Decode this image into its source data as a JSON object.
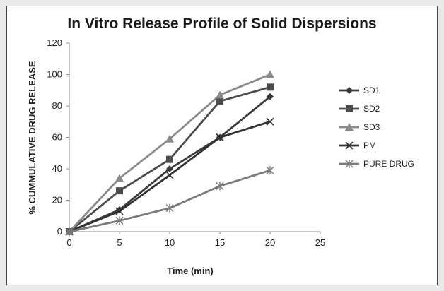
{
  "chart_data": {
    "type": "line",
    "title": "In Vitro Release Profile of Solid Dispersions",
    "xlabel": "Time (min)",
    "ylabel": "% CUMMULATIVE  DRUG  RELEASE",
    "x": [
      0,
      5,
      10,
      15,
      20
    ],
    "xlim": [
      0,
      25
    ],
    "ylim": [
      0,
      120
    ],
    "xticks": [
      "0",
      "5",
      "10",
      "15",
      "20",
      "25"
    ],
    "yticks": [
      "0",
      "20",
      "40",
      "60",
      "80",
      "100",
      "120"
    ],
    "grid": false,
    "legend_position": "right",
    "series": [
      {
        "name": "SD1",
        "values": [
          0,
          14,
          40,
          60,
          86
        ],
        "color": "#3a3a3a",
        "marker": "diamond"
      },
      {
        "name": "SD2",
        "values": [
          0,
          26,
          46,
          83,
          92
        ],
        "color": "#4c4c4c",
        "marker": "square"
      },
      {
        "name": "SD3",
        "values": [
          0,
          34,
          59,
          87,
          100
        ],
        "color": "#8a8a8a",
        "marker": "triangle"
      },
      {
        "name": "PM",
        "values": [
          0,
          13,
          36,
          60,
          70
        ],
        "color": "#333333",
        "marker": "x"
      },
      {
        "name": "PURE DRUG",
        "values": [
          0,
          7,
          15,
          29,
          39
        ],
        "color": "#7a7a7a",
        "marker": "star"
      }
    ]
  }
}
